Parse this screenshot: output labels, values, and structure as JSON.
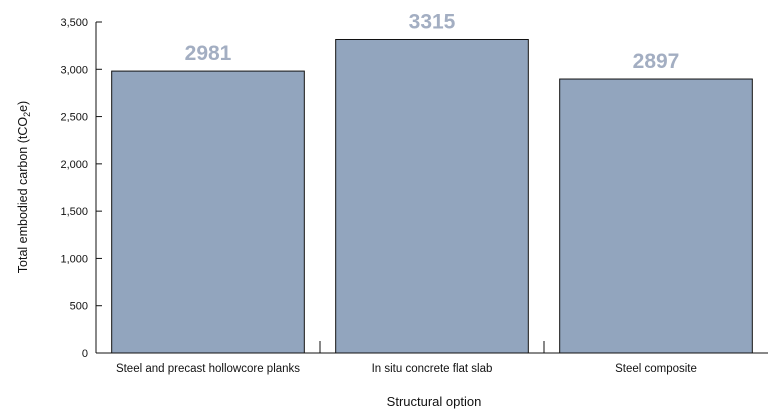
{
  "chart_data": {
    "type": "bar",
    "categories": [
      "Steel and precast hollowcore planks",
      "In situ concrete flat slab",
      "Steel composite"
    ],
    "values": [
      2981,
      3315,
      2897
    ],
    "data_labels": [
      "2981",
      "3315",
      "2897"
    ],
    "title": "",
    "xlabel": "Structural option",
    "ylabel": {
      "main": "Total embodied carbon (tCO",
      "sub": "2",
      "tail": "e)"
    },
    "ylim": [
      0,
      3500
    ],
    "yticks": [
      "0",
      "500",
      "1,000",
      "1,500",
      "2,000",
      "2,500",
      "3,000",
      "3,500"
    ],
    "grid": false,
    "legend": "none",
    "colors": {
      "bar": "#92a5be",
      "bar_edge": "#111111",
      "data_label": "#a3aec2"
    }
  }
}
